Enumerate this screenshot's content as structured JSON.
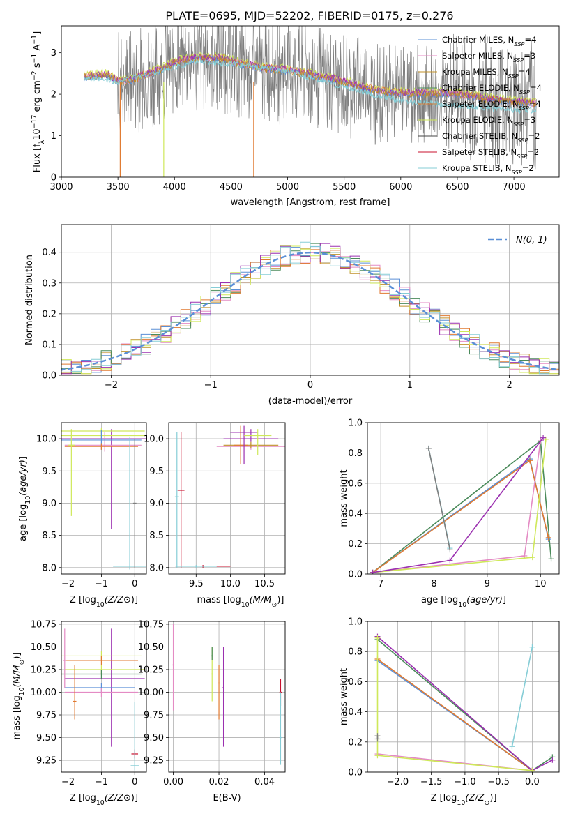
{
  "title": "PLATE=0695, MJD=52202, FIBERID=0175, z=0.276",
  "colors": {
    "chabrier_miles": "#5a8fd6",
    "salpeter_miles": "#e48bc4",
    "kroupa_miles": "#c0902a",
    "chabrier_elodie": "#4a8a5a",
    "salpeter_elodie": "#e07a30",
    "kroupa_elodie": "#cfe85a",
    "chabrier_stelib": "#7f7f7f",
    "salpeter_stelib": "#c8102e",
    "kroupa_stelib": "#86cdd6",
    "purple": "#9b30b0",
    "dashed_normal": "#5a8fd6"
  },
  "chart_data": [
    {
      "id": "spectrum",
      "type": "line",
      "xlabel": "wavelength [Angstrom, rest frame]",
      "ylabel_main": "Flux [f",
      "ylabel_sub": "λ",
      "ylabel_rest": "10",
      "ylabel_sup1": "−17",
      "ylabel_mid": " erg cm",
      "ylabel_sup2": "−2",
      "ylabel_s": " s",
      "ylabel_sup3": "−1",
      "ylabel_a": " A",
      "ylabel_sup4": "−1",
      "ylabel_end": "]",
      "xlim": [
        3000,
        7400
      ],
      "ylim": [
        0,
        3.65
      ],
      "xticks": [
        3000,
        3500,
        4000,
        4500,
        5000,
        5500,
        6000,
        6500,
        7000
      ],
      "yticks": [
        0,
        1,
        2,
        3
      ],
      "legend_position": "top-right",
      "legend": [
        {
          "label": "Chabrier MILES, N",
          "sub": "SSP",
          "count": "=4",
          "color": "#5a8fd6"
        },
        {
          "label": "Salpeter MILES, N",
          "sub": "SSP",
          "count": "=3",
          "color": "#e48bc4"
        },
        {
          "label": "Kroupa MILES, N",
          "sub": "SSP",
          "count": "=4",
          "color": "#c0902a"
        },
        {
          "label": "Chabrier ELODIE, N",
          "sub": "SSP",
          "count": "=4",
          "color": "#4a8a5a"
        },
        {
          "label": "Salpeter ELODIE, N",
          "sub": "SSP",
          "count": "=4",
          "color": "#e07a30"
        },
        {
          "label": "Kroupa ELODIE, N",
          "sub": "SSP",
          "count": "=3",
          "color": "#cfe85a"
        },
        {
          "label": "Chabrier STELIB, N",
          "sub": "SSP",
          "count": "=2",
          "color": "#444444"
        },
        {
          "label": "Salpeter STELIB, N",
          "sub": "SSP",
          "count": "=2",
          "color": "#c8102e"
        },
        {
          "label": "Kroupa STELIB, N",
          "sub": "SSP",
          "count": "=2",
          "color": "#86cdd6"
        }
      ],
      "continuum": [
        [
          3200,
          2.4
        ],
        [
          3400,
          2.45
        ],
        [
          3500,
          2.3
        ],
        [
          3600,
          2.3
        ],
        [
          3700,
          2.4
        ],
        [
          3800,
          2.5
        ],
        [
          3900,
          2.6
        ],
        [
          4000,
          2.75
        ],
        [
          4200,
          2.85
        ],
        [
          4400,
          2.85
        ],
        [
          4600,
          2.7
        ],
        [
          4800,
          2.6
        ],
        [
          5000,
          2.55
        ],
        [
          5200,
          2.45
        ],
        [
          5400,
          2.35
        ],
        [
          5600,
          2.2
        ],
        [
          5800,
          2.05
        ],
        [
          6000,
          2.0
        ],
        [
          6200,
          2.0
        ],
        [
          6400,
          2.0
        ],
        [
          6600,
          1.95
        ],
        [
          6800,
          1.85
        ],
        [
          7000,
          1.8
        ],
        [
          7200,
          1.75
        ]
      ],
      "stelib_continuum": [
        [
          3200,
          2.4
        ],
        [
          3500,
          2.3
        ],
        [
          3800,
          2.5
        ],
        [
          4200,
          2.8
        ],
        [
          4600,
          2.7
        ],
        [
          5000,
          2.55
        ],
        [
          5400,
          2.25
        ],
        [
          5800,
          1.95
        ],
        [
          6000,
          1.85
        ],
        [
          6400,
          1.75
        ],
        [
          6800,
          1.65
        ],
        [
          7200,
          1.6
        ]
      ]
    },
    {
      "id": "residuals",
      "type": "line",
      "xlabel": "(data-model)/error",
      "ylabel": "Normed distribution",
      "xlim": [
        -2.5,
        2.5
      ],
      "ylim": [
        0,
        0.49
      ],
      "xticks": [
        -2,
        -1,
        0,
        1,
        2
      ],
      "yticks": [
        0.0,
        0.1,
        0.2,
        0.3,
        0.4
      ],
      "legend_label": "N(0, 1)",
      "legend_position": "top-right",
      "grid": true
    },
    {
      "id": "age_vs_Z",
      "type": "scatter",
      "xlabel": "Z [log10(Z/Z⊙)]",
      "ylabel": "age  [log10(age/yr)]",
      "xlim": [
        -2.2,
        0.35
      ],
      "ylim": [
        7.9,
        10.25
      ],
      "xticks": [
        -2,
        -1,
        0
      ],
      "yticks": [
        8.0,
        8.5,
        9.0,
        9.5,
        10.0
      ]
    },
    {
      "id": "age_vs_mass",
      "type": "scatter",
      "xlabel": "mass [log10(M/M⊙)]",
      "xlim": [
        9.1,
        10.8
      ],
      "ylim": [
        7.9,
        10.25
      ],
      "xticks": [
        9.5,
        10.0,
        10.5
      ],
      "yticks": [
        8.0,
        8.5,
        9.0,
        9.5,
        10.0
      ]
    },
    {
      "id": "weight_vs_age",
      "type": "line",
      "xlabel": "age  [log10(age/yr)]",
      "ylabel": "mass weight",
      "xlim": [
        6.75,
        10.35
      ],
      "ylim": [
        0,
        1.0
      ],
      "xticks": [
        7,
        8,
        9,
        10
      ],
      "yticks": [
        0.0,
        0.2,
        0.4,
        0.6,
        0.8,
        1.0
      ],
      "series": [
        {
          "color": "#4a8a5a",
          "points": [
            [
              6.85,
              0.01
            ],
            [
              10.0,
              0.88
            ],
            [
              10.2,
              0.1
            ]
          ]
        },
        {
          "color": "#5a8fd6",
          "points": [
            [
              6.85,
              0.01
            ],
            [
              9.8,
              0.76
            ],
            [
              10.15,
              0.23
            ]
          ]
        },
        {
          "color": "#e07a30",
          "points": [
            [
              6.85,
              0.01
            ],
            [
              9.8,
              0.75
            ],
            [
              10.15,
              0.24
            ]
          ]
        },
        {
          "color": "#e48bc4",
          "points": [
            [
              6.85,
              0.01
            ],
            [
              9.7,
              0.12
            ],
            [
              10.0,
              0.88
            ]
          ]
        },
        {
          "color": "#cfe85a",
          "points": [
            [
              6.85,
              0.01
            ],
            [
              9.85,
              0.11
            ],
            [
              10.1,
              0.89
            ]
          ]
        },
        {
          "color": "#9b30b0",
          "points": [
            [
              6.85,
              0.01
            ],
            [
              8.3,
              0.09
            ],
            [
              10.05,
              0.9
            ]
          ]
        },
        {
          "color": "#86cdd6",
          "points": [
            [
              7.9,
              0.83
            ],
            [
              8.3,
              0.17
            ]
          ]
        },
        {
          "color": "#7f7f7f",
          "points": [
            [
              7.9,
              0.83
            ],
            [
              8.3,
              0.16
            ]
          ]
        }
      ]
    },
    {
      "id": "mass_vs_Z",
      "type": "scatter",
      "xlabel": "Z [log10(Z/Z⊙)]",
      "ylabel": "mass [log10(M/M⊙)]",
      "xlim": [
        -2.2,
        0.35
      ],
      "ylim": [
        9.12,
        10.78
      ],
      "xticks": [
        -2,
        -1,
        0
      ],
      "yticks": [
        9.25,
        9.5,
        9.75,
        10.0,
        10.25,
        10.5,
        10.75
      ]
    },
    {
      "id": "mass_vs_ebv",
      "type": "scatter",
      "xlabel": "E(B-V)",
      "xlim": [
        -0.002,
        0.049
      ],
      "ylim": [
        9.12,
        10.78
      ],
      "xticks": [
        0.0,
        0.02,
        0.04
      ],
      "yticks": [
        9.25,
        9.5,
        9.75,
        10.0,
        10.25,
        10.5,
        10.75
      ]
    },
    {
      "id": "weight_vs_Z",
      "type": "line",
      "xlabel": "Z [log10(Z/Z⊙)]",
      "ylabel": "mass weight",
      "xlim": [
        -2.45,
        0.4
      ],
      "ylim": [
        0,
        1.0
      ],
      "xticks": [
        -2.0,
        -1.5,
        -1.0,
        -0.5,
        0.0
      ],
      "yticks": [
        0.0,
        0.2,
        0.4,
        0.6,
        0.8,
        1.0
      ],
      "series": [
        {
          "color": "#5a8fd6",
          "points": [
            [
              -2.3,
              0.74
            ],
            [
              0.0,
              0.01
            ]
          ]
        },
        {
          "color": "#e07a30",
          "points": [
            [
              -2.3,
              0.75
            ],
            [
              0.0,
              0.01
            ]
          ]
        },
        {
          "color": "#4a8a5a",
          "points": [
            [
              -2.3,
              0.88
            ],
            [
              0.0,
              0.01
            ],
            [
              0.3,
              0.1
            ]
          ]
        },
        {
          "color": "#9b30b0",
          "points": [
            [
              -2.3,
              0.9
            ],
            [
              0.0,
              0.01
            ],
            [
              0.3,
              0.08
            ]
          ]
        },
        {
          "color": "#e48bc4",
          "points": [
            [
              -2.3,
              0.12
            ],
            [
              0.0,
              0.01
            ]
          ]
        },
        {
          "color": "#cfe85a",
          "points": [
            [
              -2.3,
              0.89
            ],
            [
              -2.3,
              0.11
            ],
            [
              0.0,
              0.01
            ]
          ]
        },
        {
          "color": "#86cdd6",
          "points": [
            [
              -0.3,
              0.17
            ],
            [
              0.0,
              0.83
            ]
          ]
        },
        {
          "color": "#7f7f7f",
          "points": [
            [
              -2.3,
              0.24
            ],
            [
              -2.3,
              0.22
            ]
          ]
        }
      ]
    }
  ]
}
